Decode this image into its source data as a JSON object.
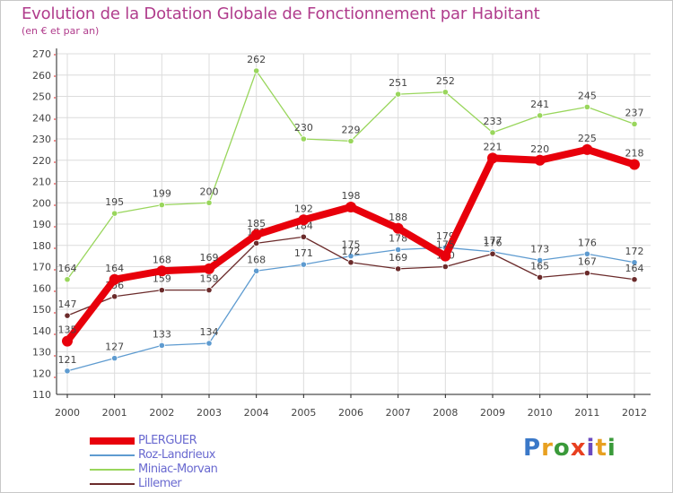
{
  "chart_data": {
    "type": "line",
    "title": "Evolution de la Dotation Globale de Fonctionnement par Habitant",
    "subtitle": "(en € et par an)",
    "xlabel": "",
    "ylabel": "",
    "categories": [
      "2000",
      "2001",
      "2002",
      "2003",
      "2004",
      "2005",
      "2006",
      "2007",
      "2008",
      "2009",
      "2010",
      "2011",
      "2012"
    ],
    "ylim": [
      110,
      270
    ],
    "yticks": [
      110,
      120,
      130,
      140,
      150,
      160,
      170,
      180,
      190,
      200,
      210,
      220,
      230,
      240,
      250,
      260,
      270
    ],
    "grid": true,
    "legend_position": "bottom-left",
    "series": [
      {
        "name": "Miniac-Morvan",
        "color": "#99d65c",
        "values": [
          164,
          195,
          199,
          200,
          262,
          230,
          229,
          251,
          252,
          233,
          241,
          245,
          237
        ]
      },
      {
        "name": "Roz-Landrieux",
        "color": "#5e9bd0",
        "values": [
          121,
          127,
          133,
          134,
          168,
          171,
          175,
          178,
          179,
          177,
          173,
          176,
          172
        ]
      },
      {
        "name": "Lillemer",
        "color": "#6b2b2b",
        "values": [
          147,
          156,
          159,
          159,
          181,
          184,
          172,
          169,
          170,
          176,
          165,
          167,
          164
        ]
      },
      {
        "name": "PLERGUER",
        "color": "#e8000b",
        "values": [
          135,
          164,
          168,
          169,
          185,
          192,
          198,
          188,
          175,
          221,
          220,
          225,
          218
        ]
      }
    ]
  },
  "legend": {
    "items": [
      {
        "label": "PLERGUER",
        "color": "#e8000b",
        "thickness": 8
      },
      {
        "label": "Roz-Landrieux",
        "color": "#5e9bd0",
        "thickness": 2
      },
      {
        "label": "Miniac-Morvan",
        "color": "#99d65c",
        "thickness": 2
      },
      {
        "label": "Lillemer",
        "color": "#6b2b2b",
        "thickness": 2
      }
    ]
  },
  "logo": {
    "letters": [
      "P",
      "r",
      "o",
      "x",
      "i",
      "t",
      "i"
    ],
    "colors": [
      "#3a78c8",
      "#e8a020",
      "#3a9a3a",
      "#e84020",
      "#6a4ac0",
      "#e8a020",
      "#3a9a3a"
    ]
  }
}
